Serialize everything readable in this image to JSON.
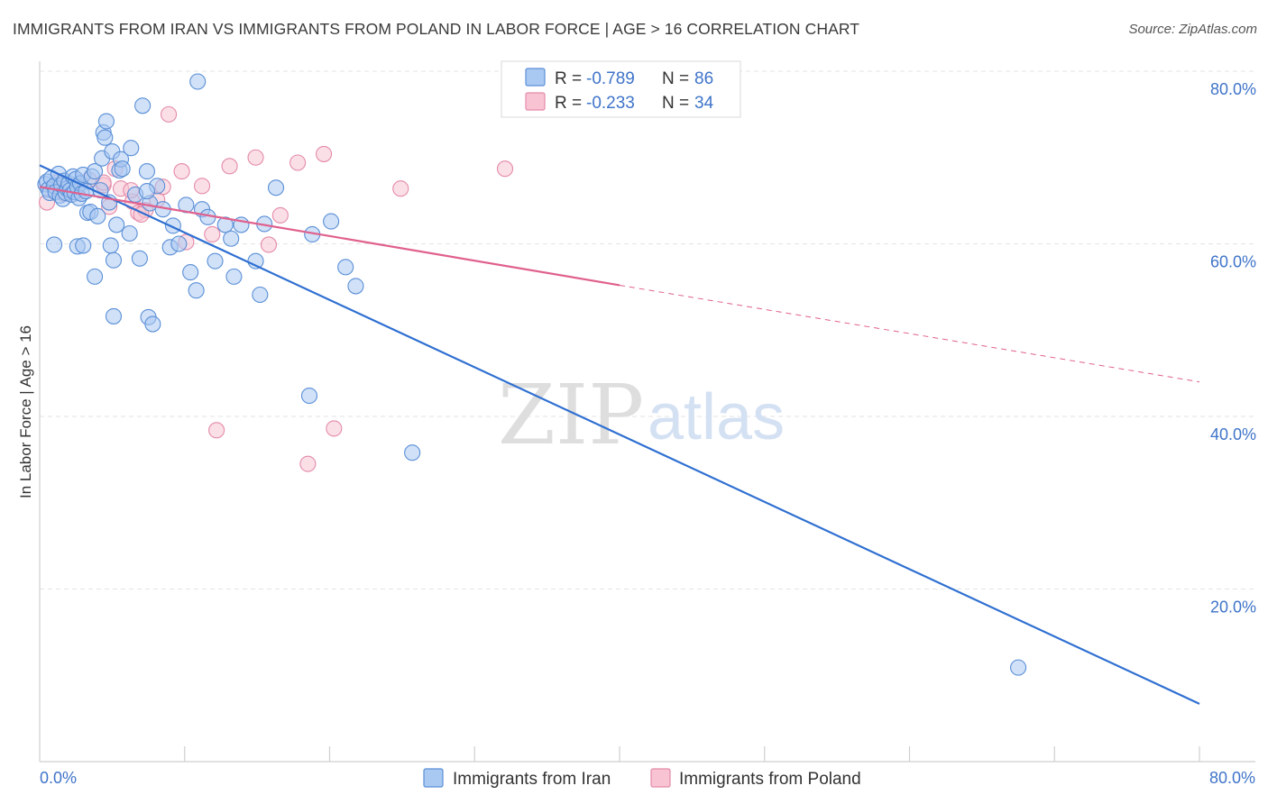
{
  "header": {
    "title": "IMMIGRANTS FROM IRAN VS IMMIGRANTS FROM POLAND IN LABOR FORCE | AGE > 16 CORRELATION CHART",
    "source": "Source: ZipAtlas.com"
  },
  "watermark": {
    "zip": "ZIP",
    "atlas": "atlas"
  },
  "colors": {
    "iran_fill": "#a9c9f3",
    "iran_stroke": "#5a8fd6",
    "iran_line": "#2e6fd1",
    "poland_fill": "#f8c4d4",
    "poland_stroke": "#e48aa8",
    "poland_line": "#e0608d",
    "accent_text": "#3f74c9",
    "grid": "#e3e3e3"
  },
  "stats": {
    "iran": {
      "r_label": "R =",
      "r_value": "-0.789",
      "n_label": "N =",
      "n_value": "86"
    },
    "poland": {
      "r_label": "R =",
      "r_value": "-0.233",
      "n_label": "N =",
      "n_value": "34"
    }
  },
  "chart_data": {
    "type": "scatter",
    "xlabel": "",
    "ylabel": "In Labor Force | Age > 16",
    "xlim": [
      0,
      80
    ],
    "ylim": [
      0,
      80
    ],
    "x_tick_labels": [
      "0.0%",
      "80.0%"
    ],
    "y_ticks": [
      20,
      40,
      60,
      80
    ],
    "y_tick_labels": [
      "20.0%",
      "40.0%",
      "60.0%",
      "80.0%"
    ],
    "grid": true,
    "legend_position": "bottom-center",
    "series": [
      {
        "name": "Immigrants from Iran",
        "points": [
          [
            0.4,
            66.9
          ],
          [
            0.5,
            67.2
          ],
          [
            0.6,
            66.3
          ],
          [
            0.7,
            65.9
          ],
          [
            0.8,
            67.6
          ],
          [
            1.0,
            66.7
          ],
          [
            1.1,
            66.0
          ],
          [
            1.3,
            68.1
          ],
          [
            1.4,
            65.6
          ],
          [
            1.5,
            66.8
          ],
          [
            1.6,
            65.2
          ],
          [
            1.7,
            67.3
          ],
          [
            1.8,
            65.9
          ],
          [
            1.9,
            66.4
          ],
          [
            2.0,
            67.0
          ],
          [
            2.1,
            66.2
          ],
          [
            2.2,
            65.7
          ],
          [
            2.3,
            67.8
          ],
          [
            2.4,
            66.0
          ],
          [
            2.5,
            67.5
          ],
          [
            2.6,
            66.6
          ],
          [
            2.7,
            65.3
          ],
          [
            2.8,
            67.0
          ],
          [
            2.9,
            65.8
          ],
          [
            3.0,
            68.0
          ],
          [
            3.2,
            66.1
          ],
          [
            3.3,
            63.6
          ],
          [
            3.5,
            63.7
          ],
          [
            3.6,
            67.8
          ],
          [
            3.8,
            68.4
          ],
          [
            4.0,
            63.2
          ],
          [
            4.2,
            66.2
          ],
          [
            4.3,
            69.9
          ],
          [
            4.4,
            72.9
          ],
          [
            4.5,
            72.3
          ],
          [
            4.6,
            74.2
          ],
          [
            4.8,
            64.8
          ],
          [
            4.9,
            59.8
          ],
          [
            5.0,
            70.7
          ],
          [
            5.1,
            58.1
          ],
          [
            5.3,
            62.2
          ],
          [
            5.5,
            68.5
          ],
          [
            5.6,
            69.8
          ],
          [
            5.7,
            68.7
          ],
          [
            6.2,
            61.2
          ],
          [
            6.6,
            65.7
          ],
          [
            6.9,
            58.3
          ],
          [
            7.1,
            76.0
          ],
          [
            7.4,
            68.4
          ],
          [
            7.5,
            51.5
          ],
          [
            7.6,
            64.7
          ],
          [
            8.1,
            66.7
          ],
          [
            8.5,
            64.0
          ],
          [
            9.0,
            59.6
          ],
          [
            9.2,
            62.1
          ],
          [
            9.6,
            60.0
          ],
          [
            10.1,
            64.5
          ],
          [
            10.4,
            56.7
          ],
          [
            10.8,
            54.6
          ],
          [
            11.2,
            64.0
          ],
          [
            11.6,
            63.1
          ],
          [
            12.1,
            58.0
          ],
          [
            12.8,
            62.2
          ],
          [
            13.2,
            60.6
          ],
          [
            13.4,
            56.2
          ],
          [
            13.9,
            62.2
          ],
          [
            14.9,
            58.0
          ],
          [
            15.2,
            54.1
          ],
          [
            15.5,
            62.3
          ],
          [
            16.3,
            66.5
          ],
          [
            18.6,
            42.4
          ],
          [
            18.8,
            61.1
          ],
          [
            20.1,
            62.6
          ],
          [
            21.1,
            57.3
          ],
          [
            21.8,
            55.1
          ],
          [
            25.7,
            35.8
          ],
          [
            67.5,
            10.9
          ],
          [
            2.6,
            59.7
          ],
          [
            6.3,
            71.1
          ],
          [
            7.4,
            66.1
          ],
          [
            10.9,
            78.8
          ],
          [
            1.0,
            59.9
          ],
          [
            3.0,
            59.8
          ],
          [
            3.8,
            56.2
          ],
          [
            5.1,
            51.6
          ],
          [
            7.8,
            50.7
          ]
        ],
        "trendline": [
          [
            0,
            69.1
          ],
          [
            80,
            6.7
          ]
        ]
      },
      {
        "name": "Immigrants from Poland",
        "points": [
          [
            0.5,
            64.8
          ],
          [
            1.2,
            67.1
          ],
          [
            1.4,
            66.1
          ],
          [
            2.6,
            65.9
          ],
          [
            3.4,
            67.4
          ],
          [
            4.4,
            66.8
          ],
          [
            4.8,
            64.3
          ],
          [
            5.2,
            68.7
          ],
          [
            5.6,
            66.4
          ],
          [
            6.4,
            64.9
          ],
          [
            6.8,
            63.6
          ],
          [
            7.3,
            63.9
          ],
          [
            8.1,
            65.1
          ],
          [
            8.5,
            66.6
          ],
          [
            8.9,
            75.0
          ],
          [
            9.8,
            68.4
          ],
          [
            10.1,
            60.2
          ],
          [
            11.2,
            66.7
          ],
          [
            11.9,
            61.1
          ],
          [
            13.1,
            69.0
          ],
          [
            14.9,
            70.0
          ],
          [
            15.8,
            59.9
          ],
          [
            16.6,
            63.3
          ],
          [
            17.8,
            69.4
          ],
          [
            18.5,
            34.5
          ],
          [
            19.6,
            70.4
          ],
          [
            20.3,
            38.6
          ],
          [
            24.9,
            66.4
          ],
          [
            32.1,
            68.7
          ],
          [
            12.2,
            38.4
          ],
          [
            7.0,
            63.4
          ],
          [
            6.3,
            66.2
          ],
          [
            4.4,
            67.1
          ],
          [
            1.7,
            65.8
          ]
        ],
        "trendline": [
          [
            0,
            66.6
          ],
          [
            40,
            55.2
          ]
        ],
        "trendline_extension": [
          [
            40,
            55.2
          ],
          [
            80,
            44.0
          ]
        ]
      }
    ]
  }
}
